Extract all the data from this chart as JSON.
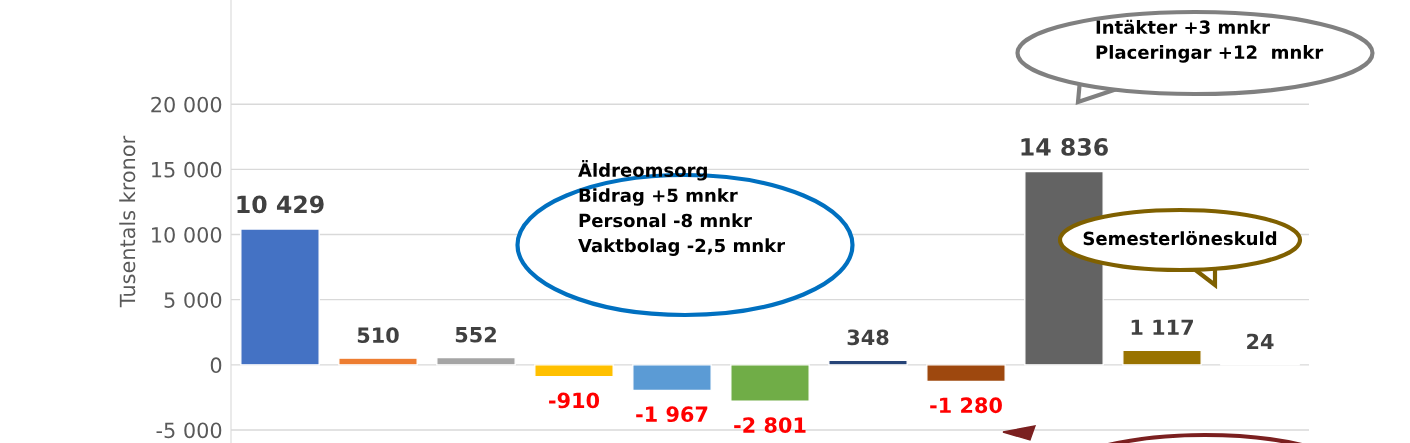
{
  "chart_data": {
    "type": "bar",
    "ylabel": "Tusentals kronor",
    "categories": [
      null,
      null,
      null,
      null,
      null,
      null,
      null,
      null,
      null,
      null,
      null
    ],
    "values": [
      10429,
      510,
      552,
      -910,
      -1967,
      -2801,
      348,
      -1280,
      14836,
      1117,
      24
    ],
    "colors": [
      "#4472c4",
      "#ed7d31",
      "#a5a5a5",
      "#ffc000",
      "#5b9bd5",
      "#70ad47",
      "#264478",
      "#9e480e",
      "#636363",
      "#997300",
      "#255e91"
    ],
    "value_labels": [
      "10 429",
      "510",
      "552",
      "-910",
      "-1 967",
      "-2 801",
      "348",
      "-1 280",
      "14 836",
      "1 117",
      "24"
    ],
    "ylim": [
      -6000,
      28000
    ],
    "yticks": [
      {
        "value": -5000,
        "label": "-5 000"
      },
      0,
      {
        "value": 5000,
        "label": "5 000"
      },
      {
        "value": 10000,
        "label": "10 000"
      },
      {
        "value": 15000,
        "label": "15 000"
      },
      {
        "value": 20000,
        "label": "20 000"
      }
    ],
    "grid": "y",
    "tick_labels": "y",
    "annotations": [
      "Äldreomsorg\nBidrag +5 mnkr\nPersonal -8 mnkr\nVaktbolag -2,5 mnkr",
      "Intäkter +3 mnkr\nPlaceringar +12  mnkr",
      "Semesterlöneskuld"
    ]
  }
}
